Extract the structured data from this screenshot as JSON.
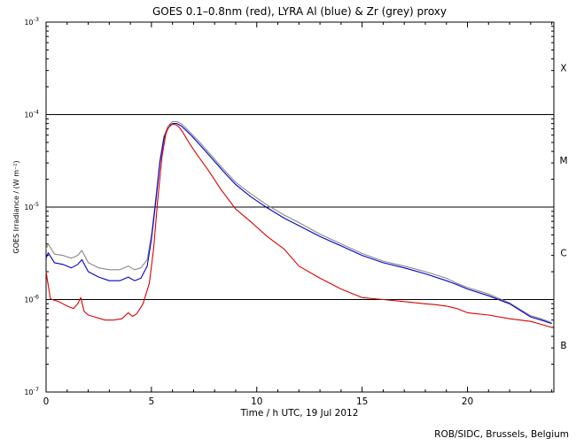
{
  "chart_data": {
    "type": "line",
    "title": "GOES 0.1–0.8nm (red), LYRA Al (blue) & Zr (grey) proxy",
    "xlabel": "Time / h UTC, 19 Jul 2012",
    "ylabel": "GOES Irradiance / (W m⁻²)",
    "xlim": [
      0,
      24.1
    ],
    "ylim": [
      1e-07,
      0.001
    ],
    "y_scale": "log",
    "x_ticks": [
      0,
      5,
      10,
      15,
      20
    ],
    "x_tick_labels": [
      "0",
      "5",
      "10",
      "15",
      "20"
    ],
    "y_ticks": [
      {
        "value": 1e-07,
        "exp": "-7"
      },
      {
        "value": 1e-06,
        "exp": "-6"
      },
      {
        "value": 1e-05,
        "exp": "-5"
      },
      {
        "value": 0.0001,
        "exp": "-4"
      },
      {
        "value": 0.001,
        "exp": "-3"
      }
    ],
    "y_tick_base": "10",
    "flare_class_lines": [
      1e-06,
      1e-05,
      0.0001
    ],
    "flare_classes": [
      {
        "label": "X",
        "value": 0.00032
      },
      {
        "label": "M",
        "value": 3.2e-05
      },
      {
        "label": "C",
        "value": 3.2e-06
      },
      {
        "label": "B",
        "value": 3.2e-07
      }
    ],
    "credit": "ROB/SIDC, Brussels, Belgium",
    "series": [
      {
        "name": "GOES 0.1-0.8nm",
        "color": "#dd0000",
        "x": [
          0,
          0.2,
          0.4,
          0.6,
          1.0,
          1.3,
          1.5,
          1.65,
          1.8,
          2.0,
          2.3,
          2.8,
          3.2,
          3.6,
          3.9,
          4.1,
          4.3,
          4.6,
          4.9,
          5.1,
          5.3,
          5.5,
          5.7,
          5.9,
          6.1,
          6.3,
          6.5,
          6.8,
          7.2,
          7.7,
          8.3,
          9.0,
          9.7,
          10.5,
          11.3,
          12.0,
          13.0,
          14.0,
          15.0,
          16.0,
          17.0,
          18.0,
          18.5,
          19.0,
          19.5,
          20.0,
          21.0,
          22.0,
          23.0,
          23.5,
          24.0
        ],
        "y": [
          2e-06,
          1.02e-06,
          9.8e-07,
          9.5e-07,
          8.5e-07,
          8e-07,
          9e-07,
          1.05e-06,
          7.5e-07,
          6.8e-07,
          6.5e-07,
          6e-07,
          6e-07,
          6.2e-07,
          7.2e-07,
          6.6e-07,
          7e-07,
          9e-07,
          1.5e-06,
          3.5e-06,
          1.2e-05,
          3.5e-05,
          6.5e-05,
          7.8e-05,
          7.9e-05,
          7.4e-05,
          6.4e-05,
          4.9e-05,
          3.6e-05,
          2.5e-05,
          1.55e-05,
          9.5e-06,
          7e-06,
          4.8e-06,
          3.5e-06,
          2.3e-06,
          1.7e-06,
          1.3e-06,
          1.05e-06,
          1e-06,
          9.5e-07,
          9e-07,
          8.8e-07,
          8.5e-07,
          8e-07,
          7.2e-07,
          6.8e-07,
          6.2e-07,
          5.8e-07,
          5.4e-07,
          5e-07
        ]
      },
      {
        "name": "LYRA Al proxy",
        "color": "#0000cc",
        "x": [
          0,
          0.1,
          0.4,
          0.8,
          1.2,
          1.5,
          1.7,
          2.0,
          2.5,
          3.0,
          3.5,
          3.9,
          4.2,
          4.5,
          4.8,
          5.0,
          5.2,
          5.4,
          5.6,
          5.8,
          6.0,
          6.2,
          6.4,
          6.6,
          6.9,
          7.3,
          7.8,
          8.4,
          9.0,
          9.7,
          10.5,
          11.3,
          12.0,
          13.0,
          14.0,
          15.0,
          16.0,
          17.0,
          18.0,
          19.0,
          19.5,
          20.0,
          21.0,
          22.0,
          23.0,
          23.5,
          24.0
        ],
        "y": [
          2.8e-06,
          3.2e-06,
          2.5e-06,
          2.4e-06,
          2.2e-06,
          2.4e-06,
          2.7e-06,
          2e-06,
          1.75e-06,
          1.6e-06,
          1.6e-06,
          1.75e-06,
          1.6e-06,
          1.7e-06,
          2.3e-06,
          4.5e-06,
          1.1e-05,
          3e-05,
          5.6e-05,
          7.2e-05,
          8e-05,
          8e-05,
          7.6e-05,
          6.9e-05,
          5.9e-05,
          4.7e-05,
          3.5e-05,
          2.45e-05,
          1.75e-05,
          1.3e-05,
          9.8e-06,
          7.6e-06,
          6.3e-06,
          4.8e-06,
          3.8e-06,
          3e-06,
          2.5e-06,
          2.2e-06,
          1.9e-06,
          1.6e-06,
          1.45e-06,
          1.3e-06,
          1.1e-06,
          9e-07,
          6.5e-07,
          6e-07,
          5.5e-07
        ]
      },
      {
        "name": "LYRA Zr proxy",
        "color": "#888888",
        "x": [
          0,
          0.1,
          0.4,
          0.8,
          1.2,
          1.5,
          1.7,
          2.0,
          2.5,
          3.0,
          3.5,
          3.9,
          4.2,
          4.5,
          4.8,
          5.0,
          5.2,
          5.4,
          5.6,
          5.8,
          6.0,
          6.2,
          6.4,
          6.6,
          6.9,
          7.3,
          7.8,
          8.4,
          9.0,
          9.7,
          10.5,
          11.3,
          12.0,
          13.0,
          14.0,
          15.0,
          16.0,
          17.0,
          18.0,
          19.0,
          19.5,
          20.0,
          21.0,
          22.0,
          23.0,
          23.5,
          24.0
        ],
        "y": [
          3.5e-06,
          4e-06,
          3.1e-06,
          3e-06,
          2.8e-06,
          3e-06,
          3.4e-06,
          2.5e-06,
          2.2e-06,
          2.1e-06,
          2.1e-06,
          2.3e-06,
          2.1e-06,
          2.2e-06,
          2.7e-06,
          5e-06,
          1.2e-05,
          3.2e-05,
          5.9e-05,
          7.6e-05,
          8.4e-05,
          8.4e-05,
          8e-05,
          7.3e-05,
          6.2e-05,
          5e-05,
          3.7e-05,
          2.6e-05,
          1.85e-05,
          1.4e-05,
          1.05e-05,
          8.2e-06,
          6.8e-06,
          5.1e-06,
          4e-06,
          3.15e-06,
          2.6e-06,
          2.3e-06,
          2e-06,
          1.7e-06,
          1.5e-06,
          1.35e-06,
          1.15e-06,
          9.2e-07,
          6.7e-07,
          6.2e-07,
          5.6e-07
        ]
      }
    ]
  }
}
